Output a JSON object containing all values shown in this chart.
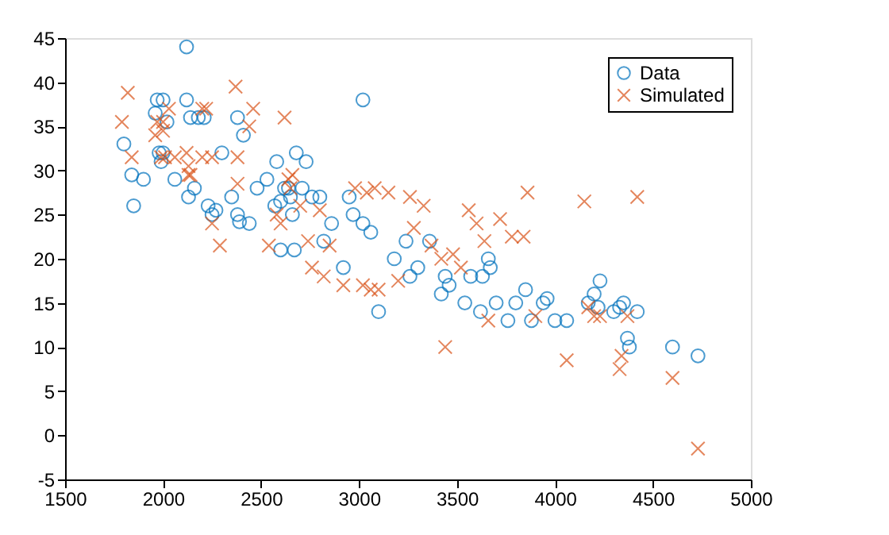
{
  "chart_data": {
    "type": "scatter",
    "xlim": [
      1500,
      5000
    ],
    "ylim": [
      -5,
      45
    ],
    "xticks": [
      1500,
      2000,
      2500,
      3000,
      3500,
      4000,
      4500,
      5000
    ],
    "yticks": [
      -5,
      0,
      5,
      10,
      15,
      20,
      25,
      30,
      35,
      40,
      45
    ],
    "grid": false,
    "legend": "top right",
    "series": [
      {
        "name": "Data",
        "color": "#0072bd",
        "marker": "circle",
        "x": [
          1800,
          1840,
          1850,
          1900,
          1960,
          1970,
          1980,
          1990,
          2000,
          2000,
          2020,
          2060,
          2120,
          2120,
          2130,
          2140,
          2160,
          2180,
          2210,
          2230,
          2250,
          2270,
          2300,
          2350,
          2380,
          2380,
          2390,
          2410,
          2440,
          2480,
          2530,
          2570,
          2580,
          2600,
          2600,
          2620,
          2640,
          2650,
          2660,
          2670,
          2680,
          2710,
          2730,
          2760,
          2800,
          2820,
          2860,
          2920,
          2950,
          2970,
          3020,
          3020,
          3060,
          3100,
          3180,
          3240,
          3260,
          3300,
          3360,
          3420,
          3440,
          3460,
          3540,
          3570,
          3620,
          3630,
          3660,
          3670,
          3700,
          3760,
          3800,
          3850,
          3880,
          3940,
          3960,
          4000,
          4060,
          4170,
          4200,
          4230,
          4220,
          4300,
          4330,
          4350,
          4370,
          4380,
          4420,
          4600,
          4730
        ],
        "values": [
          33,
          29.5,
          26,
          29,
          36.5,
          38,
          32,
          31,
          38,
          32,
          35.5,
          29,
          44,
          38,
          27,
          36,
          28,
          36,
          36,
          26,
          25,
          25.5,
          32,
          27,
          36,
          25,
          24.2,
          34,
          24,
          28,
          29,
          26,
          31,
          26.5,
          21,
          28,
          28,
          27,
          25,
          21,
          32,
          28,
          31,
          27,
          27,
          22,
          24,
          19,
          27,
          25,
          38,
          24,
          23,
          14,
          20,
          22,
          18,
          19,
          22,
          16,
          18,
          17,
          15,
          18,
          14,
          18,
          20,
          19,
          15,
          13,
          15,
          16.5,
          13,
          15,
          15.5,
          13,
          13,
          15,
          16,
          17.5,
          14.5,
          14,
          14.5,
          15,
          11,
          10,
          14,
          10,
          9
        ]
      },
      {
        "name": "Simulated",
        "color": "#d95319",
        "marker": "cross",
        "x": [
          1790,
          1820,
          1840,
          1960,
          1970,
          1990,
          2000,
          2000,
          2010,
          2030,
          2060,
          2120,
          2130,
          2130,
          2140,
          2200,
          2200,
          2220,
          2250,
          2250,
          2290,
          2370,
          2380,
          2380,
          2440,
          2460,
          2540,
          2580,
          2600,
          2620,
          2640,
          2650,
          2660,
          2700,
          2740,
          2760,
          2800,
          2820,
          2850,
          2920,
          2980,
          3020,
          3040,
          3060,
          3080,
          3100,
          3150,
          3200,
          3260,
          3280,
          3330,
          3370,
          3420,
          3440,
          3480,
          3520,
          3560,
          3600,
          3640,
          3660,
          3720,
          3780,
          3840,
          3860,
          3900,
          4060,
          4150,
          4170,
          4200,
          4230,
          4330,
          4340,
          4370,
          4420,
          4600,
          4730
        ],
        "values": [
          35.5,
          38.8,
          31.5,
          34,
          35.5,
          31.5,
          35.5,
          34.5,
          31.5,
          37,
          31.5,
          32,
          30.5,
          29.5,
          29.5,
          37,
          31.5,
          37,
          31.5,
          24,
          21.5,
          39.5,
          31.5,
          28.5,
          35,
          37,
          21.5,
          25,
          24,
          36,
          29,
          28,
          29.5,
          26,
          22,
          19,
          25.5,
          18,
          21.5,
          17,
          28,
          17,
          27.5,
          16.5,
          28,
          16.5,
          27.5,
          17.5,
          27,
          23.5,
          26,
          21.5,
          20,
          10,
          20.5,
          19,
          25.5,
          24,
          22,
          13,
          24.5,
          22.5,
          22.5,
          27.5,
          13.5,
          8.5,
          26.5,
          14.5,
          13.5,
          13.5,
          7.5,
          9,
          13.5,
          27,
          6.5,
          -1.5
        ]
      }
    ]
  }
}
